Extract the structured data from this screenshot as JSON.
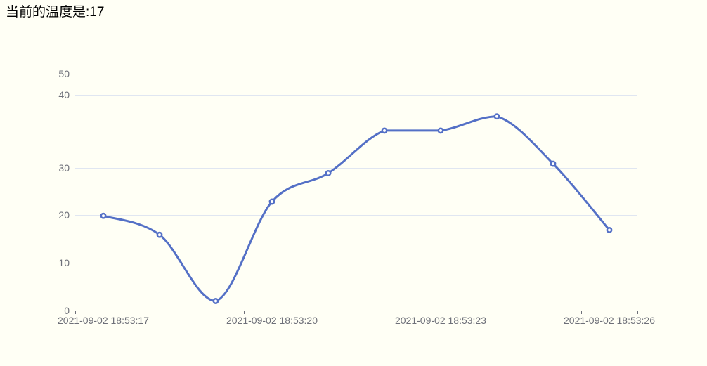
{
  "page": {
    "background_color": "#FFFFF5"
  },
  "header": {
    "title": "当前的温度是:17",
    "current_temperature": "17"
  },
  "chart_data": {
    "type": "line",
    "smooth": true,
    "legend": "none",
    "grid": "horizontal-gridlines-only",
    "x_tick_labels": [
      "2021-09-02 18:53:17",
      "2021-09-02 18:53:20",
      "2021-09-02 18:53:23",
      "2021-09-02 18:53:26"
    ],
    "x_label_interval": 3,
    "values": [
      20,
      16,
      2,
      23,
      29,
      38,
      38,
      41,
      31,
      17
    ],
    "y_tick_labels": [
      "0",
      "10",
      "20",
      "30",
      "40",
      "50"
    ],
    "ylim": [
      0,
      50
    ],
    "colors": {
      "line": "#5470C6",
      "marker_fill": "#FFFFFF",
      "gridline": "#E0E6F1",
      "axis": "#6E7079",
      "label": "#6E7079"
    }
  }
}
